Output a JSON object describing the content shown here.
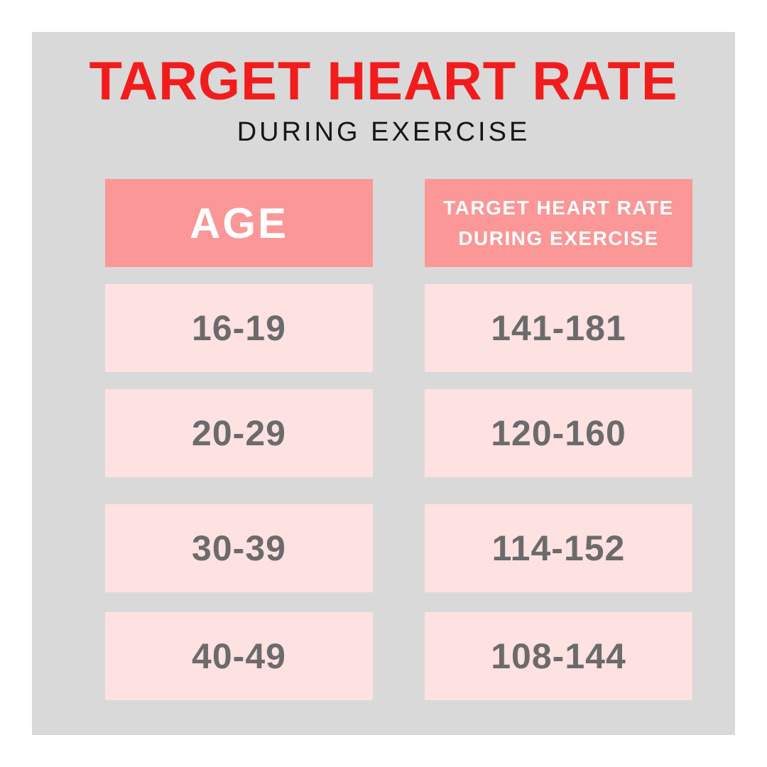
{
  "page": {
    "title": "TARGET HEART RATE",
    "subtitle": "DURING EXERCISE"
  },
  "table": {
    "age_header": "AGE",
    "thr_header_line1": "TARGET HEART RATE",
    "thr_header_line2": "DURING EXERCISE",
    "rows": [
      {
        "age": "16-19",
        "thr": "141-181"
      },
      {
        "age": "20-29",
        "thr": "120-160"
      },
      {
        "age": "30-39",
        "thr": "114-152"
      },
      {
        "age": "40-49",
        "thr": "108-144"
      }
    ]
  },
  "colors": {
    "title-red": "#f31c1c",
    "subtitle-black": "#161616",
    "panel-bg": "#d9d9d9",
    "header-pink": "#fb9797",
    "header-text": "#ffffff",
    "row-pink": "#fee1e1",
    "cell-text": "#6b6b6b"
  },
  "chart_data": {
    "type": "table",
    "title": "TARGET HEART RATE",
    "subtitle": "DURING EXERCISE",
    "columns": [
      "AGE",
      "TARGET HEART RATE DURING EXERCISE"
    ],
    "rows": [
      [
        "16-19",
        "141-181"
      ],
      [
        "20-29",
        "120-160"
      ],
      [
        "30-39",
        "114-152"
      ],
      [
        "40-49",
        "108-144"
      ]
    ]
  }
}
